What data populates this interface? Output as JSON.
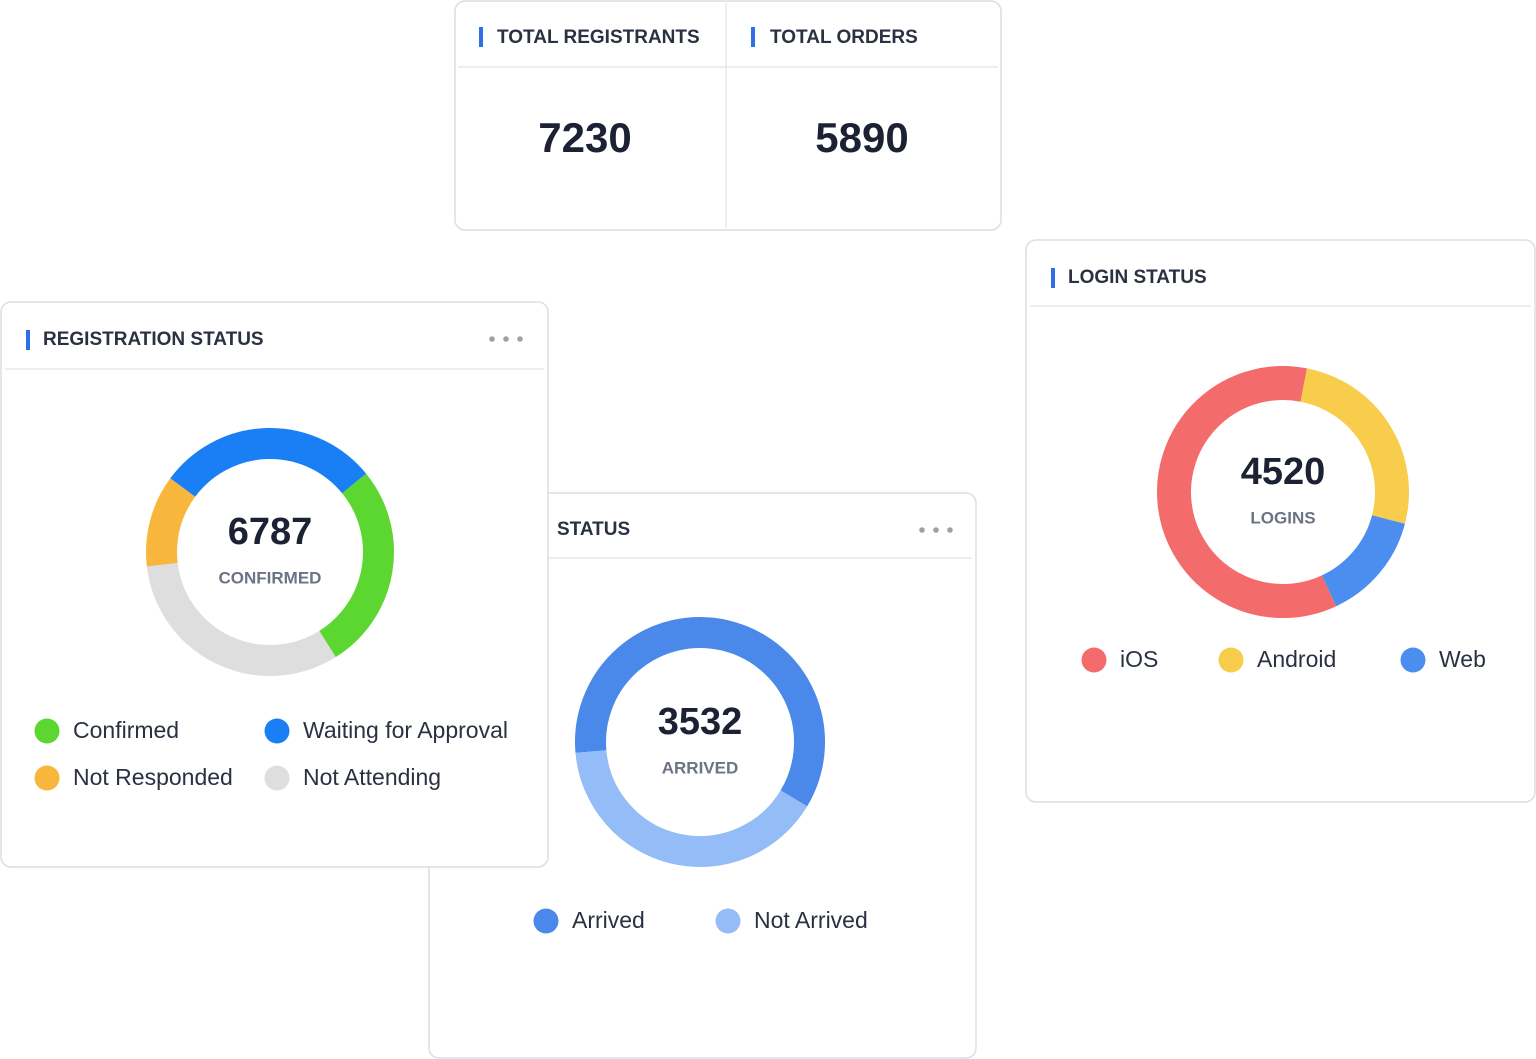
{
  "stats": [
    {
      "label": "TOTAL REGISTRANTS",
      "value": 7230
    },
    {
      "label": "TOTAL ORDERS",
      "value": 5890
    }
  ],
  "chart_data": [
    {
      "type": "pie",
      "title": "REGISTRATION STATUS",
      "center_value": 6787,
      "center_label": "CONFIRMED",
      "categories": [
        "Confirmed",
        "Waiting for Approval",
        "Not Responded",
        "Not Attending"
      ],
      "values": [
        27,
        29,
        12,
        32
      ],
      "colors": [
        "#5cd630",
        "#1a7ff5",
        "#f8b73c",
        "#dedede"
      ]
    },
    {
      "type": "pie",
      "title": "STATUS",
      "center_value": 3532,
      "center_label": "ARRIVED",
      "categories": [
        "Arrived",
        "Not Arrived"
      ],
      "values": [
        60,
        40
      ],
      "colors": [
        "#4a89ea",
        "#94bdf7"
      ]
    },
    {
      "type": "pie",
      "title": "LOGIN STATUS",
      "center_value": 4520,
      "center_label": "LOGINS",
      "categories": [
        "iOS",
        "Android",
        "Web"
      ],
      "values": [
        60,
        26,
        14
      ],
      "colors": [
        "#f46b6b",
        "#f7cd4b",
        "#4b8ef0"
      ]
    }
  ]
}
